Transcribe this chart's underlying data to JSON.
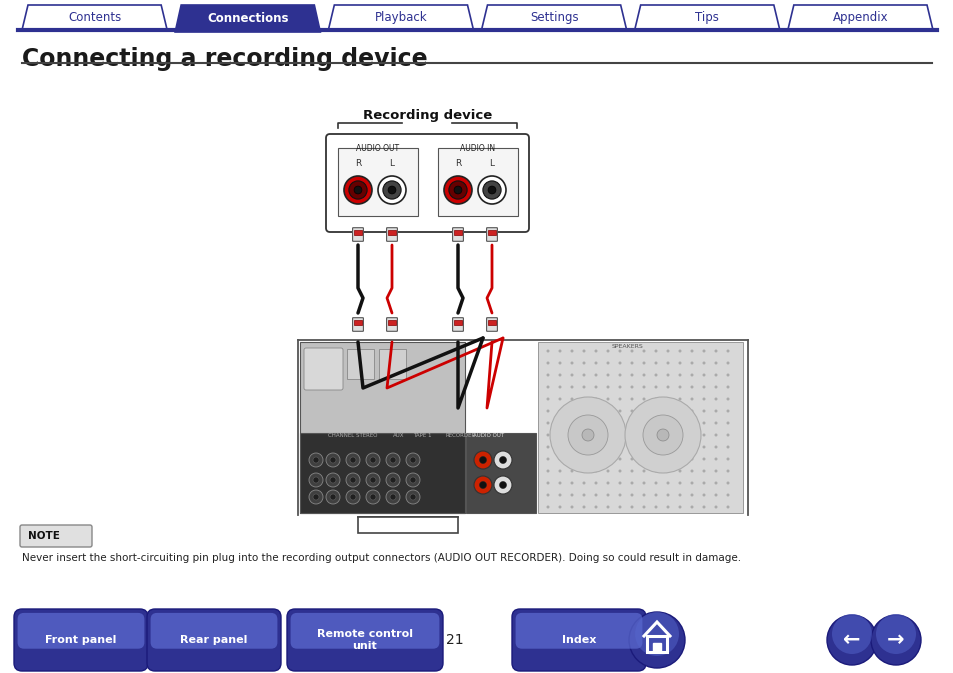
{
  "bg_color": "#ffffff",
  "tab_labels": [
    "Contents",
    "Connections",
    "Playback",
    "Settings",
    "Tips",
    "Appendix"
  ],
  "tab_active": 1,
  "tab_color_active": "#2e3191",
  "tab_color_inactive": "#ffffff",
  "tab_text_color_active": "#ffffff",
  "tab_text_color_inactive": "#2e3191",
  "tab_border_color": "#2e3191",
  "tab_line_color": "#2e3191",
  "page_title": "Connecting a recording device",
  "title_color": "#1a1a1a",
  "hr_color": "#555555",
  "note_label": "NOTE",
  "note_text": "Never insert the short-circuiting pin plug into the recording output connectors (AUDIO OUT RECORDER). Doing so could result in damage.",
  "note_bg": "#e0e0e0",
  "note_border": "#888888",
  "bottom_buttons": [
    "Front panel",
    "Rear panel",
    "Remote control\nunit",
    "Index"
  ],
  "bottom_btn_color_top": "#5060cc",
  "bottom_btn_color_bot": "#2e3191",
  "bottom_btn_text": "#ffffff",
  "page_number": "21",
  "rec_device_label": "Recording device",
  "audio_out_label": "AUDIO OUT",
  "audio_in_label": "AUDIO IN",
  "rl_label": "R    L"
}
